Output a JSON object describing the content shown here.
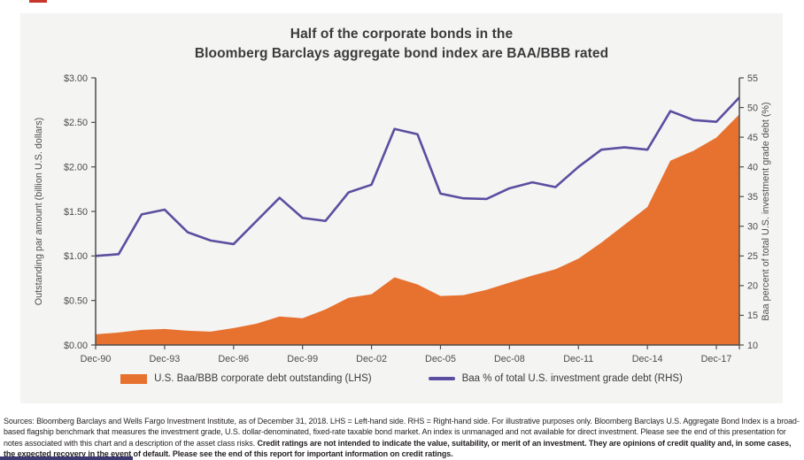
{
  "title": {
    "line1": "Half of the corporate bonds in the",
    "line2": "Bloomberg Barclays aggregate bond index are BAA/BBB rated"
  },
  "chart_data": {
    "type": "area+line combo, dual y-axes",
    "x_categories": [
      "Dec-90",
      "Dec-91",
      "Dec-92",
      "Dec-93",
      "Dec-94",
      "Dec-95",
      "Dec-96",
      "Dec-97",
      "Dec-98",
      "Dec-99",
      "Dec-00",
      "Dec-01",
      "Dec-02",
      "Dec-03",
      "Dec-04",
      "Dec-05",
      "Dec-06",
      "Dec-07",
      "Dec-08",
      "Dec-09",
      "Dec-10",
      "Dec-11",
      "Dec-12",
      "Dec-13",
      "Dec-14",
      "Dec-15",
      "Dec-16",
      "Dec-17",
      "Dec-18"
    ],
    "x_tick_labels": [
      "Dec-90",
      "Dec-93",
      "Dec-96",
      "Dec-99",
      "Dec-02",
      "Dec-05",
      "Dec-08",
      "Dec-11",
      "Dec-14",
      "Dec-17"
    ],
    "series": [
      {
        "name": "U.S. Baa/BBB corporate debt outstanding (LHS)",
        "type": "area",
        "axis": "left",
        "color": "#E7712F",
        "values": [
          0.12,
          0.14,
          0.17,
          0.18,
          0.16,
          0.15,
          0.19,
          0.24,
          0.32,
          0.3,
          0.4,
          0.53,
          0.57,
          0.76,
          0.68,
          0.55,
          0.56,
          0.62,
          0.7,
          0.78,
          0.85,
          0.97,
          1.15,
          1.35,
          1.55,
          2.07,
          2.18,
          2.33,
          2.59
        ]
      },
      {
        "name": "Baa % of total U.S. investment grade debt (RHS)",
        "type": "line",
        "axis": "right",
        "color": "#5B4EA0",
        "values": [
          25.0,
          25.3,
          32.0,
          32.8,
          29.0,
          27.6,
          27.0,
          30.9,
          34.8,
          31.4,
          30.9,
          35.7,
          37.0,
          46.4,
          45.5,
          35.5,
          34.7,
          34.6,
          36.4,
          37.4,
          36.6,
          40.0,
          42.9,
          43.3,
          42.9,
          49.4,
          47.9,
          47.6,
          51.7
        ]
      }
    ],
    "left_axis": {
      "label": "Outstanding par amount (billion U.S. dollars)",
      "min": 0,
      "max": 3,
      "step": 0.5,
      "tick_labels": [
        "$0.00",
        "$0.50",
        "$1.00",
        "$1.50",
        "$2.00",
        "$2.50",
        "$3.00"
      ]
    },
    "right_axis": {
      "label": "Baa percent of total U.S. investment grade debt (%)",
      "min": 10,
      "max": 55,
      "step": 5,
      "tick_labels": [
        "10",
        "15",
        "20",
        "25",
        "30",
        "35",
        "40",
        "45",
        "50",
        "55"
      ]
    },
    "grid": false,
    "legend_position": "bottom"
  },
  "footnote": {
    "sources": "Sources: Bloomberg Barclays and Wells Fargo Investment Institute, as of December 31, 2018. LHS = Left-hand side. RHS = Right-hand side.  For illustrative purposes only. Bloomberg Barclays U.S. Aggregate Bond Index is a broad-based flagship benchmark that measures the investment grade, U.S. dollar-denominated, fixed-rate taxable bond market. An index is unmanaged and not available for direct investment. Please see the end of this presentation for notes associated with this chart and a description of the asset class risks. ",
    "credit": "Credit ratings are not intended to indicate the value, suitability, or merit of an investment. They are opinions of credit quality and, in some cases, the expected recovery in the event of default. Please see the end of this report for important information on credit ratings."
  },
  "colors": {
    "area": "#E7712F",
    "line": "#5B4EA0",
    "axis": "#4d4d4d",
    "tick_text": "#4d4d4f",
    "accent_bar": "#3e3a72",
    "red_mark": "#c9342c"
  }
}
